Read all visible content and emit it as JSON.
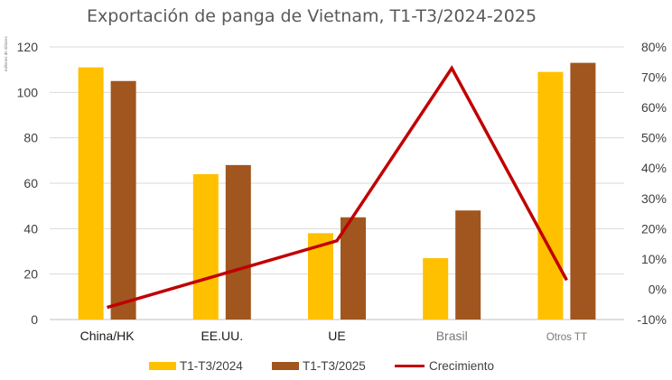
{
  "chart_data": {
    "type": "bar",
    "title": "Exportación de panga de Vietnam, T1-T3/2024-2025",
    "ylabel": "millones de dólares",
    "categories": [
      "China/HK",
      "EE.UU.",
      "UE",
      "Brasil",
      "Otros TT"
    ],
    "series": [
      {
        "name": "T1-T3/2024",
        "values": [
          111,
          64,
          38,
          27,
          109
        ],
        "color": "#FFC000",
        "axis": "left"
      },
      {
        "name": "T1-T3/2025",
        "values": [
          105,
          68,
          45,
          48,
          113
        ],
        "color": "#A0561E",
        "axis": "left"
      },
      {
        "name": "Crecimiento",
        "type": "line",
        "values": [
          -6,
          5,
          16,
          73,
          3
        ],
        "unit": "%",
        "color": "#C00000",
        "axis": "right"
      }
    ],
    "ylim": [
      0,
      120
    ],
    "y_ticks": [
      "0",
      "20",
      "40",
      "60",
      "80",
      "100",
      "120"
    ],
    "y2lim": [
      -10,
      80
    ],
    "y2_ticks": [
      "-10%",
      "0%",
      "10%",
      "20%",
      "30%",
      "40%",
      "50%",
      "60%",
      "70%",
      "80%"
    ],
    "grid": true,
    "legend": "bottom"
  }
}
